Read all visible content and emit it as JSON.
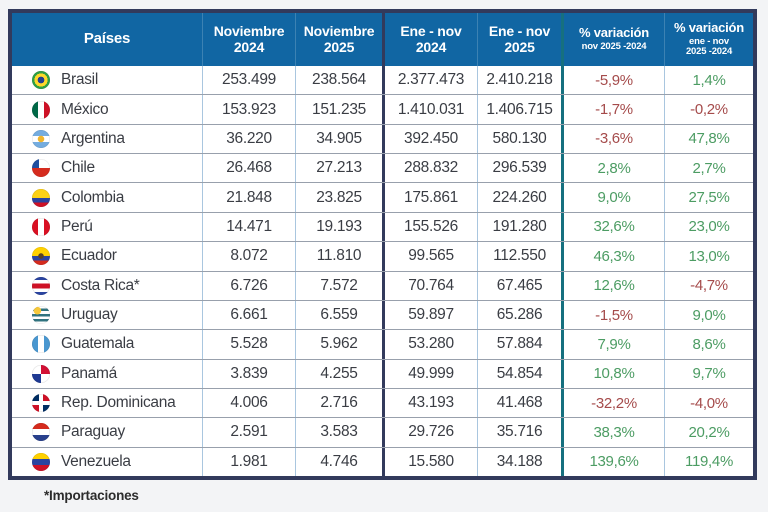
{
  "chart_data": {
    "type": "table",
    "columns": [
      {
        "lines": [
          "Países"
        ],
        "small_sub": false
      },
      {
        "lines": [
          "Noviembre",
          "2024"
        ],
        "small_sub": false
      },
      {
        "lines": [
          "Noviembre",
          "2025"
        ],
        "small_sub": false
      },
      {
        "lines": [
          "Ene - nov",
          "2024"
        ],
        "small_sub": false
      },
      {
        "lines": [
          "Ene - nov",
          "2025"
        ],
        "small_sub": false
      },
      {
        "lines": [
          "% variación",
          "nov 2025 -2024"
        ],
        "small_sub": true
      },
      {
        "lines": [
          "% variación",
          "ene - nov",
          "2025 -2024"
        ],
        "small_sub": true
      }
    ],
    "rows": [
      {
        "country": "Brasil",
        "flag": "brasil",
        "nov_2024": "253.499",
        "nov_2025": "238.564",
        "ene_nov_2024": "2.377.473",
        "ene_nov_2025": "2.410.218",
        "var_nov": "-5,9%",
        "var_ene_nov": "1,4%"
      },
      {
        "country": "México",
        "flag": "mexico",
        "nov_2024": "153.923",
        "nov_2025": "151.235",
        "ene_nov_2024": "1.410.031",
        "ene_nov_2025": "1.406.715",
        "var_nov": "-1,7%",
        "var_ene_nov": "-0,2%"
      },
      {
        "country": "Argentina",
        "flag": "argentina",
        "nov_2024": "36.220",
        "nov_2025": "34.905",
        "ene_nov_2024": "392.450",
        "ene_nov_2025": "580.130",
        "var_nov": "-3,6%",
        "var_ene_nov": "47,8%"
      },
      {
        "country": "Chile",
        "flag": "chile",
        "nov_2024": "26.468",
        "nov_2025": "27.213",
        "ene_nov_2024": "288.832",
        "ene_nov_2025": "296.539",
        "var_nov": "2,8%",
        "var_ene_nov": "2,7%"
      },
      {
        "country": "Colombia",
        "flag": "colombia",
        "nov_2024": "21.848",
        "nov_2025": "23.825",
        "ene_nov_2024": "175.861",
        "ene_nov_2025": "224.260",
        "var_nov": "9,0%",
        "var_ene_nov": "27,5%"
      },
      {
        "country": "Perú",
        "flag": "peru",
        "nov_2024": "14.471",
        "nov_2025": "19.193",
        "ene_nov_2024": "155.526",
        "ene_nov_2025": "191.280",
        "var_nov": "32,6%",
        "var_ene_nov": "23,0%"
      },
      {
        "country": "Ecuador",
        "flag": "ecuador",
        "nov_2024": "8.072",
        "nov_2025": "11.810",
        "ene_nov_2024": "99.565",
        "ene_nov_2025": "112.550",
        "var_nov": "46,3%",
        "var_ene_nov": "13,0%"
      },
      {
        "country": "Costa Rica*",
        "flag": "costarica",
        "nov_2024": "6.726",
        "nov_2025": "7.572",
        "ene_nov_2024": "70.764",
        "ene_nov_2025": "67.465",
        "var_nov": "12,6%",
        "var_ene_nov": "-4,7%"
      },
      {
        "country": "Uruguay",
        "flag": "uruguay",
        "nov_2024": "6.661",
        "nov_2025": "6.559",
        "ene_nov_2024": "59.897",
        "ene_nov_2025": "65.286",
        "var_nov": "-1,5%",
        "var_ene_nov": "9,0%"
      },
      {
        "country": "Guatemala",
        "flag": "guatemala",
        "nov_2024": "5.528",
        "nov_2025": "5.962",
        "ene_nov_2024": "53.280",
        "ene_nov_2025": "57.884",
        "var_nov": "7,9%",
        "var_ene_nov": "8,6%"
      },
      {
        "country": "Panamá",
        "flag": "panama",
        "nov_2024": "3.839",
        "nov_2025": "4.255",
        "ene_nov_2024": "49.999",
        "ene_nov_2025": "54.854",
        "var_nov": "10,8%",
        "var_ene_nov": "9,7%"
      },
      {
        "country": "Rep. Dominicana",
        "flag": "dominicana",
        "nov_2024": "4.006",
        "nov_2025": "2.716",
        "ene_nov_2024": "43.193",
        "ene_nov_2025": "41.468",
        "var_nov": "-32,2%",
        "var_ene_nov": "-4,0%"
      },
      {
        "country": "Paraguay",
        "flag": "paraguay",
        "nov_2024": "2.591",
        "nov_2025": "3.583",
        "ene_nov_2024": "29.726",
        "ene_nov_2025": "35.716",
        "var_nov": "38,3%",
        "var_ene_nov": "20,2%"
      },
      {
        "country": "Venezuela",
        "flag": "venezuela",
        "nov_2024": "1.981",
        "nov_2025": "4.746",
        "ene_nov_2024": "15.580",
        "ene_nov_2025": "34.188",
        "var_nov": "139,6%",
        "var_ene_nov": "119,4%"
      }
    ],
    "footnote": "*Importaciones",
    "colors": {
      "header_bg": "#1166a3",
      "outer_border": "#323a5c",
      "teal_divider": "#16707f",
      "positive": "#4c9c63",
      "negative": "#a54b4b"
    }
  }
}
